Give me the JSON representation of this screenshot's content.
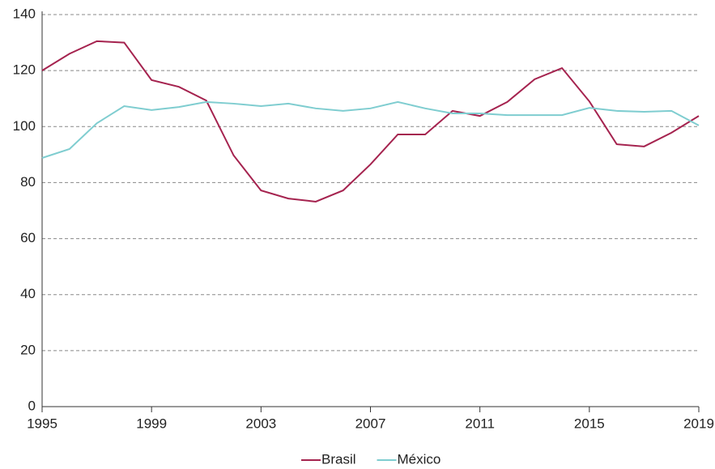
{
  "chart_data": {
    "type": "line",
    "x": [
      1995,
      1996,
      1997,
      1998,
      1999,
      2000,
      2001,
      2002,
      2003,
      2004,
      2005,
      2006,
      2007,
      2008,
      2009,
      2010,
      2011,
      2012,
      2013,
      2014,
      2015,
      2016,
      2017,
      2018,
      2019
    ],
    "series": [
      {
        "name": "Brasil",
        "color": "#a5234f",
        "values": [
          120,
          126,
          130.5,
          130,
          116.6,
          114.2,
          109.3,
          89.7,
          77.2,
          74.3,
          73.2,
          77.2,
          86.5,
          97.2,
          97.2,
          105.6,
          103.8,
          108.8,
          116.9,
          120.9,
          109,
          93.7,
          92.9,
          97.8,
          103.8
        ]
      },
      {
        "name": "México",
        "color": "#7fcdd0",
        "values": [
          88.8,
          92,
          101.2,
          107.3,
          105.9,
          107,
          108.8,
          108.2,
          107.3,
          108.2,
          106.5,
          105.6,
          106.5,
          108.8,
          106.5,
          104.7,
          104.7,
          104.1,
          104.1,
          104.1,
          106.7,
          105.6,
          105.3,
          105.6,
          100.4
        ]
      }
    ],
    "xlim": [
      1995,
      2019
    ],
    "xticks": [
      1995,
      1999,
      2003,
      2007,
      2011,
      2015,
      2019
    ],
    "ylim": [
      0,
      140
    ],
    "yticks": [
      0,
      20,
      40,
      60,
      80,
      100,
      120,
      140
    ],
    "grid": true,
    "legend": "bottom"
  }
}
